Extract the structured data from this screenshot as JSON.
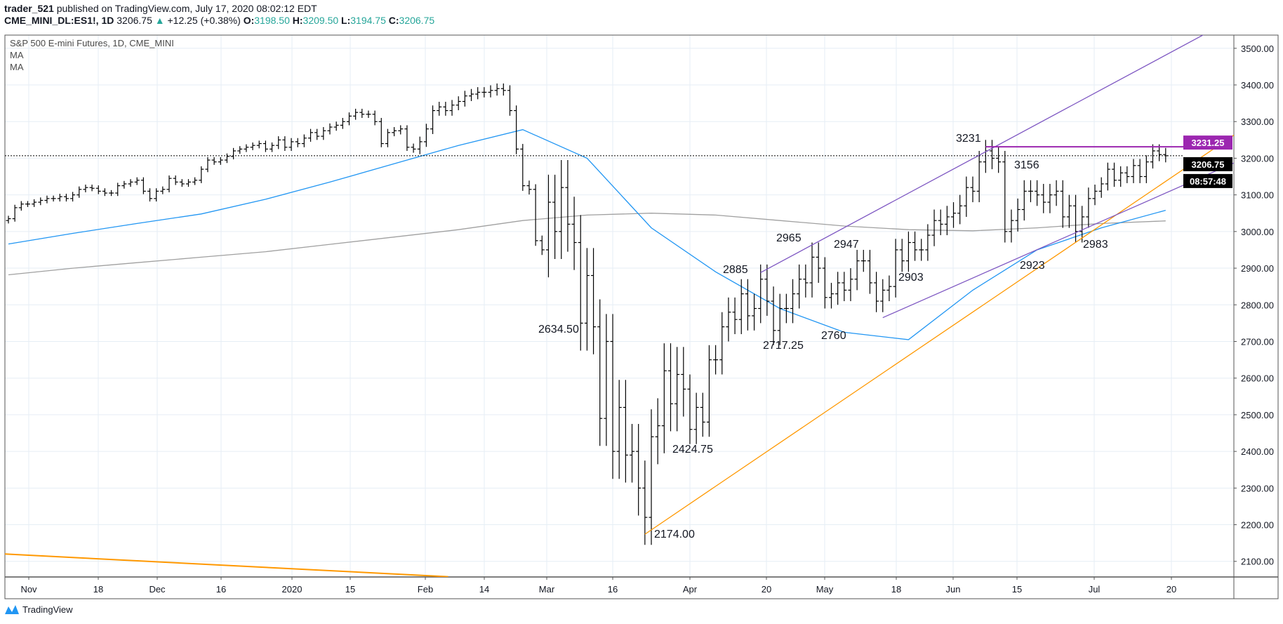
{
  "header": {
    "user": "trader_521",
    "published": "published on TradingView.com, July 17, 2020 08:02:12 EDT",
    "symbol": "CME_MINI_DL:ES1!, 1D",
    "last": "3206.75",
    "change": "+12.25 (+0.38%)",
    "o_label": "O:",
    "o": "3198.50",
    "h_label": "H:",
    "h": "3209.50",
    "l_label": "L:",
    "l": "3194.75",
    "c_label": "C:",
    "c": "3206.75"
  },
  "legend": {
    "title": "S&P 500 E-mini Futures, 1D, CME_MINI",
    "ma1": "MA",
    "ma2": "MA"
  },
  "branding": {
    "logo": "TradingView"
  },
  "colors": {
    "bars": "#000000",
    "ma_fast": "#2196f3",
    "ma_slow": "#a0a0a0",
    "trend_orange": "#ff9800",
    "channel_purple": "#7e57c2",
    "resistance": "#9c27b0",
    "up": "#26a69a"
  },
  "chart_data": {
    "type": "ohlc",
    "title": "S&P 500 E-mini Futures, 1D, CME_MINI",
    "ylim": [
      2050,
      3560
    ],
    "y_ticks": [
      "2100.00",
      "2200.00",
      "2300.00",
      "2400.00",
      "2500.00",
      "2600.00",
      "2700.00",
      "2800.00",
      "2900.00",
      "3000.00",
      "3100.00",
      "3200.00",
      "3300.00",
      "3400.00",
      "3500.00"
    ],
    "x_ticks": [
      "Nov",
      "18",
      "Dec",
      "16",
      "2020",
      "15",
      "Feb",
      "14",
      "Mar",
      "16",
      "Apr",
      "20",
      "May",
      "18",
      "Jun",
      "15",
      "Jul",
      "20"
    ],
    "closes_by_month": {
      "2019-10": [
        3035
      ],
      "2019-11": [
        3065,
        3075,
        3075,
        3080,
        3085,
        3090,
        3090,
        3095,
        3090,
        3100,
        3115,
        3120,
        3118,
        3110,
        3105,
        3105,
        3125,
        3130,
        3135,
        3140
      ],
      "2019-12": [
        3110,
        3090,
        3110,
        3115,
        3145,
        3135,
        3130,
        3135,
        3140,
        3170,
        3195,
        3190,
        3195,
        3205,
        3220,
        3225,
        3230,
        3235,
        3240,
        3225,
        3235
      ],
      "2020-01": [
        3250,
        3230,
        3245,
        3240,
        3255,
        3270,
        3260,
        3275,
        3285,
        3290,
        3300,
        3315,
        3325,
        3320,
        3320,
        3300,
        3240,
        3270,
        3275,
        3280,
        3230,
        3225
      ],
      "2020-02": [
        3245,
        3280,
        3330,
        3340,
        3330,
        3345,
        3355,
        3370,
        3375,
        3380,
        3380,
        3385,
        3390,
        3385,
        3330,
        3225,
        3125,
        3115,
        2975,
        2950
      ],
      "2020-03": [
        3080,
        3000,
        3120,
        3020,
        2970,
        2750,
        2880,
        2740,
        2490,
        2700,
        2400,
        2520,
        2390,
        2400,
        2300,
        2220,
        2440,
        2470,
        2620,
        2530,
        2610,
        2570
      ],
      "2020-04": [
        2460,
        2520,
        2480,
        2650,
        2650,
        2740,
        2780,
        2760,
        2830,
        2770,
        2790,
        2870,
        2810,
        2730,
        2790,
        2790,
        2830,
        2870,
        2860,
        2930,
        2900
      ],
      "2020-05": [
        2820,
        2830,
        2860,
        2840,
        2870,
        2920,
        2920,
        2860,
        2810,
        2840,
        2850,
        2950,
        2920,
        2970,
        2950,
        2950,
        2990,
        3030,
        3020,
        3040
      ],
      "2020-06": [
        3050,
        3070,
        3120,
        3110,
        3190,
        3220,
        3200,
        3190,
        3000,
        3030,
        3060,
        3110,
        3110,
        3100,
        3080,
        3100,
        3110,
        3040,
        3070,
        3000,
        3040,
        3090
      ],
      "2020-07": [
        3110,
        3130,
        3170,
        3140,
        3160,
        3150,
        3180,
        3150,
        3190,
        3220,
        3210,
        3206.75
      ]
    },
    "ma_sampled_every_10_bars": {
      "fast": [
        2966,
        2995,
        3022,
        3048,
        3088,
        3135,
        3185,
        3235,
        3278,
        3200,
        3010,
        2890,
        2790,
        2725,
        2705,
        2840,
        2950,
        3010,
        3058
      ],
      "slow": [
        2882,
        2900,
        2915,
        2930,
        2945,
        2965,
        2985,
        3005,
        3030,
        3045,
        3050,
        3045,
        3030,
        3015,
        3005,
        3002,
        3010,
        3022,
        3029
      ]
    },
    "trendlines": [
      {
        "name": "orange-support",
        "from": [
          "2020-03-23",
          2174
        ],
        "to_price_at_right_edge": 3263
      },
      {
        "name": "orange-old-down",
        "from": [
          "2019-10-31",
          2120
        ],
        "to_price_at_feb": 2058
      },
      {
        "name": "purple-upper-channel",
        "from": [
          "2020-04-17",
          2888
        ],
        "to_price": 3554
      },
      {
        "name": "purple-lower-channel",
        "from": [
          "2020-05-14",
          2765
        ],
        "to_price_at_right_edge": 3187
      },
      {
        "name": "resistance",
        "price": 3231.25
      }
    ],
    "annotations": [
      "3231",
      "3156",
      "2965",
      "2947",
      "2885",
      "2903",
      "2760",
      "2717.25",
      "2634.50",
      "2424.75",
      "2174.00",
      "2923",
      "2983"
    ],
    "price_tags": {
      "resistance": "3231.25",
      "last": "3206.75",
      "countdown": "08:57:48"
    }
  }
}
